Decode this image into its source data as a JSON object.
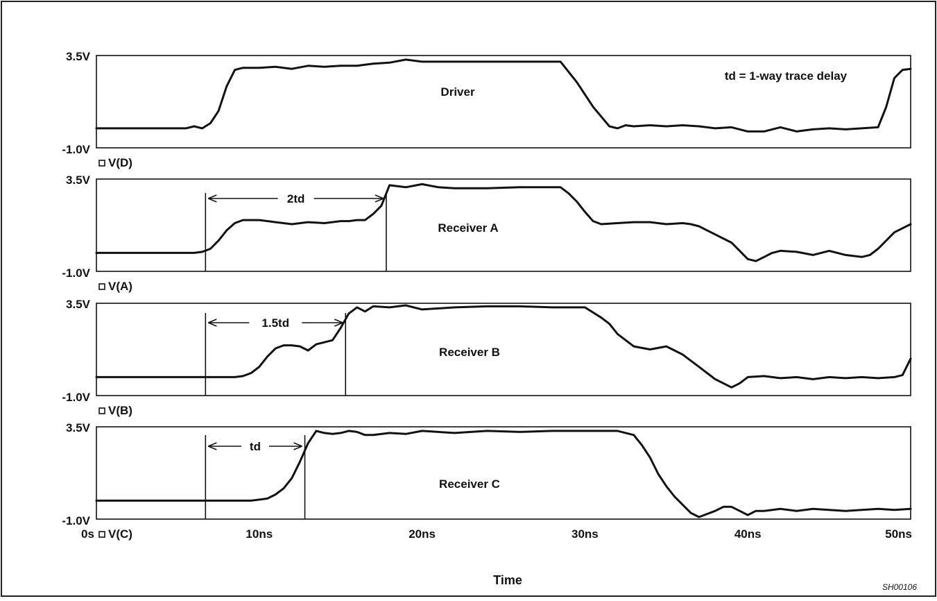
{
  "chart_data": {
    "type": "line",
    "xlabel": "Time",
    "x_ticks": [
      "0s",
      "10ns",
      "20ns",
      "30ns",
      "40ns",
      "50ns"
    ],
    "x_tick_values": [
      0,
      10,
      20,
      30,
      40,
      50
    ],
    "xlim": [
      0,
      50
    ],
    "ylim": [
      -1.0,
      3.5
    ],
    "y_tick_labels": [
      "3.5V",
      "-1.0V"
    ],
    "figure_code": "SH00106",
    "annotation_note": "td = 1-way trace delay",
    "line_color": "#111111",
    "panels": [
      {
        "trace_label": "V(D)",
        "title": "Driver",
        "series": [
          {
            "x": [
              0,
              5.5,
              6.0,
              6.5,
              7.0,
              7.5,
              8.0,
              8.5,
              9.0,
              10,
              11,
              12,
              13,
              14,
              15,
              16,
              17,
              18,
              19,
              20,
              22,
              24,
              26,
              28.5,
              29.5,
              30.5,
              31.5,
              32.0,
              32.5,
              33,
              34,
              35,
              36,
              37,
              38,
              39,
              40,
              41,
              42,
              43,
              44,
              45,
              46,
              47,
              48,
              48.5,
              49,
              49.5,
              50
            ],
            "y": [
              -0.05,
              -0.05,
              0.05,
              -0.05,
              0.2,
              0.8,
              2.0,
              2.8,
              2.9,
              2.9,
              2.95,
              2.85,
              3.0,
              2.95,
              3.0,
              3.0,
              3.1,
              3.15,
              3.3,
              3.2,
              3.2,
              3.2,
              3.2,
              3.2,
              2.2,
              1.0,
              0.05,
              -0.05,
              0.1,
              0.05,
              0.1,
              0.05,
              0.1,
              0.05,
              -0.05,
              0.0,
              -0.2,
              -0.2,
              0.0,
              -0.2,
              -0.1,
              -0.05,
              -0.1,
              -0.05,
              0.0,
              1.0,
              2.4,
              2.8,
              2.85
            ]
          }
        ]
      },
      {
        "trace_label": "V(A)",
        "title": "Receiver A",
        "annotation": "2td",
        "marker_start": 6.7,
        "marker_end": 17.8,
        "series": [
          {
            "x": [
              0,
              6.0,
              6.5,
              7.0,
              7.5,
              8.0,
              8.5,
              9.0,
              9.5,
              10,
              11,
              12,
              13,
              14,
              15,
              15.5,
              16,
              16.5,
              17,
              17.5,
              18,
              19,
              20,
              21,
              22,
              24,
              26,
              28.5,
              29,
              29.5,
              30,
              30.5,
              31,
              32,
              33,
              34,
              35,
              36,
              36.5,
              37,
              38,
              39,
              39.5,
              40,
              40.5,
              41,
              41.5,
              42,
              43,
              44,
              45,
              46,
              47,
              47.5,
              48,
              49,
              50
            ],
            "y": [
              -0.1,
              -0.1,
              -0.05,
              0.1,
              0.5,
              1.0,
              1.35,
              1.5,
              1.5,
              1.5,
              1.4,
              1.3,
              1.4,
              1.35,
              1.45,
              1.45,
              1.5,
              1.5,
              1.8,
              2.2,
              3.2,
              3.1,
              3.25,
              3.1,
              3.05,
              3.05,
              3.1,
              3.1,
              2.8,
              2.4,
              1.9,
              1.45,
              1.3,
              1.35,
              1.4,
              1.4,
              1.3,
              1.35,
              1.3,
              1.2,
              0.8,
              0.4,
              0.0,
              -0.4,
              -0.5,
              -0.3,
              -0.1,
              0.0,
              -0.05,
              -0.2,
              0.0,
              -0.2,
              -0.3,
              -0.2,
              0.1,
              0.9,
              1.3
            ]
          }
        ]
      },
      {
        "trace_label": "V(B)",
        "title": "Receiver B",
        "annotation": "1.5td",
        "marker_start": 6.7,
        "marker_end": 15.3,
        "series": [
          {
            "x": [
              0,
              8.5,
              9.0,
              9.5,
              10,
              10.5,
              11,
              11.5,
              12,
              12.5,
              13,
              13.5,
              14,
              14.5,
              15,
              15.5,
              16,
              16.5,
              17,
              18,
              19,
              20,
              22,
              24,
              26,
              28,
              30,
              31,
              31.5,
              32,
              33,
              34,
              35,
              36,
              37,
              37.5,
              38,
              38.5,
              39,
              39.5,
              40,
              41,
              42,
              43,
              44,
              45,
              46,
              47,
              48,
              49,
              49.5,
              50
            ],
            "y": [
              -0.1,
              -0.1,
              -0.05,
              0.1,
              0.4,
              0.9,
              1.3,
              1.45,
              1.45,
              1.4,
              1.2,
              1.5,
              1.6,
              1.7,
              2.3,
              3.0,
              3.3,
              3.1,
              3.35,
              3.3,
              3.4,
              3.2,
              3.3,
              3.35,
              3.35,
              3.3,
              3.3,
              2.8,
              2.5,
              2.0,
              1.4,
              1.25,
              1.4,
              1.0,
              0.4,
              0.1,
              -0.2,
              -0.4,
              -0.6,
              -0.4,
              -0.1,
              -0.05,
              -0.15,
              -0.1,
              -0.2,
              -0.1,
              -0.15,
              -0.1,
              -0.15,
              -0.1,
              0.0,
              0.8
            ]
          }
        ]
      },
      {
        "trace_label": "V(C)",
        "title": "Receiver C",
        "annotation": "td",
        "marker_start": 6.7,
        "marker_end": 12.8,
        "series": [
          {
            "x": [
              0,
              9.5,
              10.5,
              11,
              11.5,
              12,
              12.5,
              13,
              13.5,
              14,
              14.5,
              15,
              15.5,
              16,
              16.5,
              17,
              18,
              19,
              20,
              22,
              24,
              26,
              28,
              30,
              31,
              32,
              33,
              33.5,
              34,
              34.5,
              35,
              35.5,
              36,
              36.5,
              37,
              38,
              38.5,
              39,
              39.5,
              40,
              40.5,
              41,
              42,
              43,
              44,
              45,
              46,
              47,
              48,
              49,
              50
            ],
            "y": [
              -0.1,
              -0.1,
              0.0,
              0.2,
              0.5,
              1.0,
              1.8,
              2.7,
              3.3,
              3.2,
              3.15,
              3.2,
              3.3,
              3.25,
              3.1,
              3.1,
              3.2,
              3.15,
              3.3,
              3.2,
              3.3,
              3.25,
              3.3,
              3.3,
              3.3,
              3.3,
              3.1,
              2.6,
              2.0,
              1.2,
              0.6,
              0.1,
              -0.3,
              -0.7,
              -0.9,
              -0.6,
              -0.4,
              -0.4,
              -0.6,
              -0.8,
              -0.6,
              -0.6,
              -0.5,
              -0.6,
              -0.5,
              -0.55,
              -0.6,
              -0.55,
              -0.5,
              -0.55,
              -0.5
            ]
          }
        ]
      }
    ]
  }
}
